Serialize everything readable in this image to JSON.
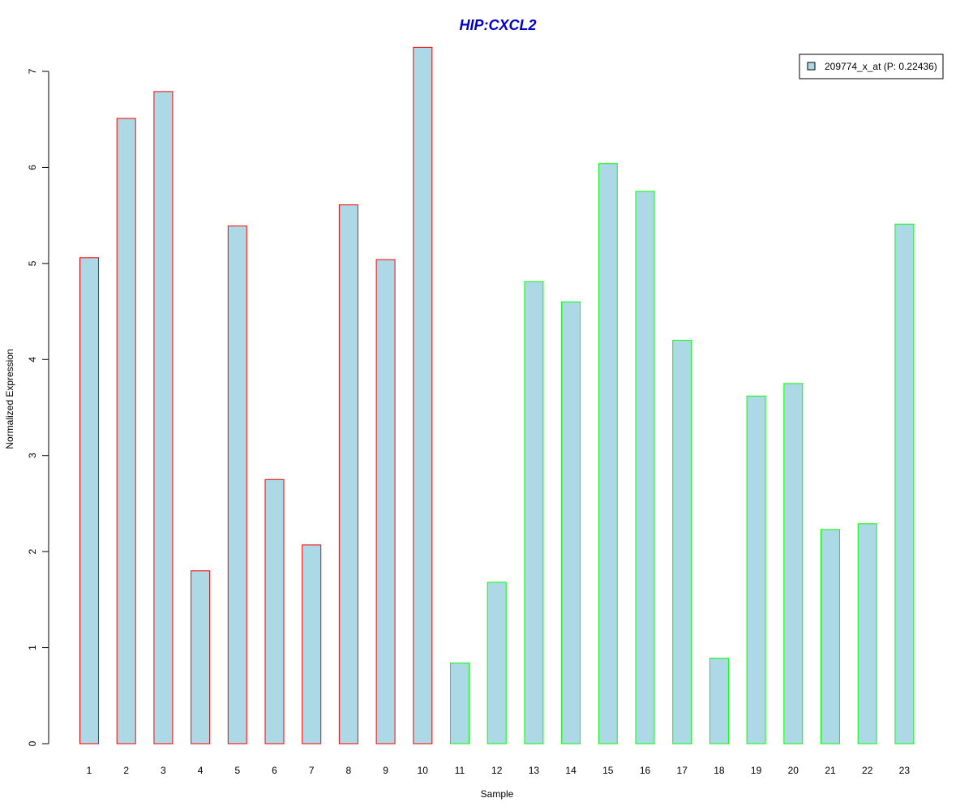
{
  "chart_data": {
    "type": "bar",
    "title": "HIP:CXCL2",
    "xlabel": "Sample",
    "ylabel": "Normalized Expression",
    "categories": [
      "1",
      "2",
      "3",
      "4",
      "5",
      "6",
      "7",
      "8",
      "9",
      "10",
      "11",
      "12",
      "13",
      "14",
      "15",
      "16",
      "17",
      "18",
      "19",
      "20",
      "21",
      "22",
      "23"
    ],
    "values": [
      5.06,
      6.51,
      6.79,
      1.8,
      5.39,
      2.75,
      2.07,
      5.61,
      5.04,
      7.25,
      0.84,
      1.68,
      4.81,
      4.6,
      6.04,
      5.75,
      4.2,
      0.89,
      3.62,
      3.75,
      2.23,
      2.29,
      5.41
    ],
    "groups": [
      "red",
      "red",
      "red",
      "red",
      "red",
      "red",
      "red",
      "red",
      "red",
      "red",
      "green",
      "green",
      "green",
      "green",
      "green",
      "green",
      "green",
      "green",
      "green",
      "green",
      "green",
      "green",
      "green"
    ],
    "ylim": [
      0,
      7
    ],
    "yticks": [
      0,
      1,
      2,
      3,
      4,
      5,
      6,
      7
    ],
    "grid": false,
    "legend": {
      "position": "top-right",
      "entries": [
        "209774_x_at (P: 0.22436)"
      ]
    },
    "colors": {
      "bar_fill": "#add8e6",
      "group_red": "#ff0000",
      "group_green": "#00ff00",
      "title": "#0000cd",
      "axis": "#000000"
    }
  }
}
